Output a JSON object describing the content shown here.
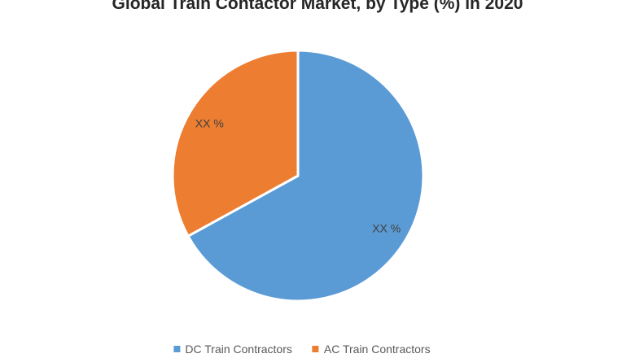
{
  "chart_data": {
    "type": "pie",
    "title": "Global Train Contactor Market, by Type (%) in 2020",
    "slices": [
      {
        "name": "DC Train Contractors",
        "value": 67,
        "data_label": "XX %",
        "color": "#5B9BD5"
      },
      {
        "name": "AC Train Contractors",
        "value": 33,
        "data_label": "XX %",
        "color": "#ED7D31"
      }
    ],
    "start_angle_deg": 0,
    "direction": "clockwise",
    "legend_position": "bottom",
    "slice_border_color": "#FFFFFF"
  }
}
